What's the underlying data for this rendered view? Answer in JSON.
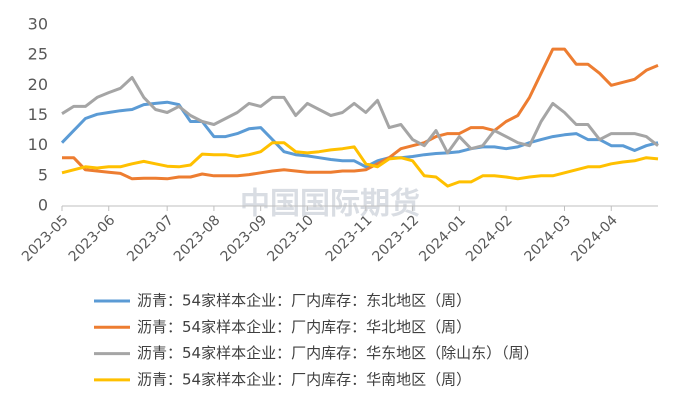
{
  "chart_data": {
    "type": "line",
    "watermark": "中国国际期货",
    "categories": [
      "2023-05",
      null,
      null,
      null,
      "2023-06",
      null,
      null,
      null,
      null,
      "2023-07",
      null,
      null,
      null,
      "2023-08",
      null,
      null,
      null,
      "2023-09",
      null,
      null,
      null,
      "2023-10",
      null,
      null,
      null,
      null,
      "2023-11",
      null,
      null,
      null,
      "2023-12",
      null,
      null,
      null,
      "2024-01",
      null,
      null,
      null,
      "2024-02",
      null,
      null,
      null,
      null,
      "2024-03",
      null,
      null,
      null,
      "2024-04",
      null,
      null,
      null,
      null
    ],
    "ylim": [
      0,
      30
    ],
    "yticks": [
      0,
      5,
      10,
      15,
      20,
      25,
      30
    ],
    "grid": false,
    "series": [
      {
        "name": "沥青：54家样本企业：厂内库存：东北地区（周）",
        "color": "#5b9bd5",
        "values": [
          10.5,
          12.5,
          14.5,
          15.2,
          15.5,
          15.8,
          16,
          16.8,
          17,
          17.2,
          16.8,
          14,
          14,
          11.5,
          11.5,
          12,
          12.8,
          13,
          11,
          9,
          8.5,
          8.3,
          8,
          7.7,
          7.5,
          7.5,
          6.5,
          7.5,
          8,
          8,
          8.2,
          8.5,
          8.7,
          8.8,
          9,
          9.5,
          9.8,
          9.8,
          9.5,
          9.8,
          10.5,
          11,
          11.5,
          11.8,
          12,
          11,
          11,
          10,
          10,
          9.2,
          10,
          10.5
        ]
      },
      {
        "name": "沥青：54家样本企业：厂内库存：华北地区（周）",
        "color": "#ed7d31",
        "values": [
          8,
          8,
          6,
          5.8,
          5.6,
          5.4,
          4.5,
          4.6,
          4.6,
          4.5,
          4.8,
          4.8,
          5.3,
          5,
          5,
          5,
          5.2,
          5.5,
          5.8,
          6,
          5.8,
          5.6,
          5.6,
          5.6,
          5.8,
          5.8,
          6,
          7,
          8,
          9.5,
          10,
          10.5,
          11.5,
          12,
          12,
          13,
          13,
          12.5,
          14,
          15,
          18,
          22,
          26,
          26,
          23.5,
          23.5,
          22,
          20,
          20.5,
          21,
          22.5,
          23.3
        ]
      },
      {
        "name": "沥青：54家样本企业：厂内库存：华东地区（除山东）（周）",
        "color": "#a5a5a5",
        "values": [
          15.3,
          16.5,
          16.5,
          18,
          18.8,
          19.5,
          21.3,
          18,
          16,
          15.5,
          16.5,
          15,
          14,
          13.5,
          14.5,
          15.5,
          17,
          16.5,
          18,
          18,
          15,
          17,
          16,
          15,
          15.5,
          17,
          15.5,
          17.5,
          13,
          13.5,
          11,
          10,
          12.5,
          8.8,
          11.5,
          9.5,
          10,
          12.5,
          11.5,
          10.5,
          10,
          14,
          17,
          15.5,
          13.5,
          13.5,
          11,
          12,
          12,
          12,
          11.5,
          10
        ]
      },
      {
        "name": "沥青：54家样本企业：厂内库存：华南地区（周）",
        "color": "#ffc000",
        "values": [
          5.5,
          6,
          6.5,
          6.3,
          6.5,
          6.5,
          7,
          7.4,
          7,
          6.6,
          6.5,
          6.8,
          8.6,
          8.5,
          8.5,
          8.2,
          8.5,
          9,
          10.5,
          10.5,
          9,
          8.8,
          9,
          9.3,
          9.5,
          9.8,
          7,
          6.5,
          7.8,
          8,
          7.5,
          5,
          4.8,
          3.3,
          4,
          4,
          5,
          5,
          4.8,
          4.5,
          4.8,
          5,
          5,
          5.5,
          6,
          6.5,
          6.5,
          7,
          7.3,
          7.5,
          8,
          7.8
        ]
      }
    ]
  }
}
